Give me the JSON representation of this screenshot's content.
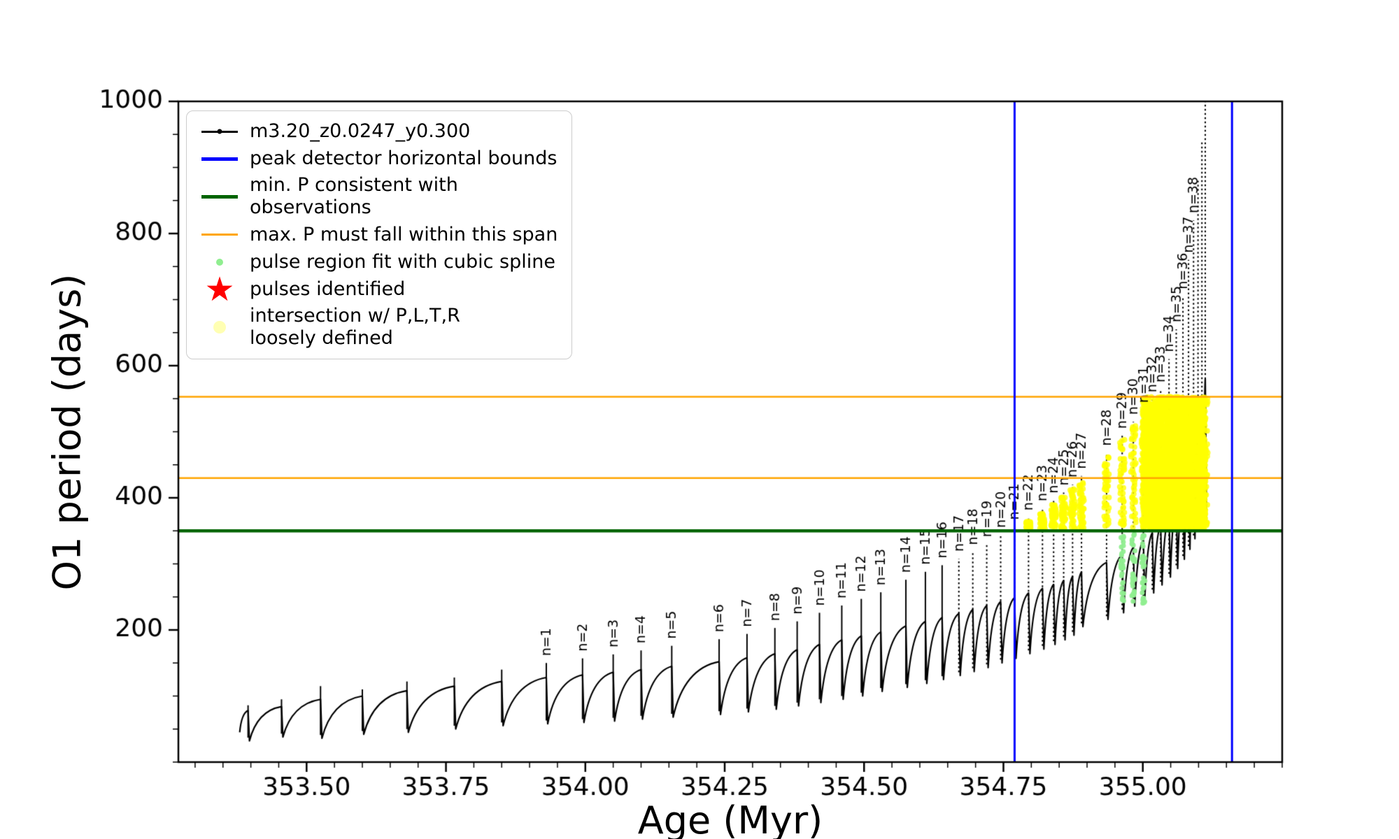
{
  "figure": {
    "background": "#ffffff"
  },
  "axes": {
    "xlabel": "Age (Myr)",
    "ylabel": "O1 period (days)",
    "xlim": [
      353.27,
      355.25
    ],
    "ylim": [
      0,
      1000
    ],
    "xticks": [
      353.5,
      353.75,
      354.0,
      354.25,
      354.5,
      354.75,
      355.0
    ],
    "xtick_labels": [
      "353.50",
      "353.75",
      "354.00",
      "354.25",
      "354.50",
      "354.75",
      "355.00"
    ],
    "yticks": [
      200,
      400,
      600,
      800,
      1000
    ],
    "ytick_labels": [
      "200",
      "400",
      "600",
      "800",
      "1000"
    ],
    "x_minor_step": 0.05,
    "y_minor_step": 50
  },
  "chart_data": {
    "type": "line",
    "series_name": "m3.20_z0.0247_y0.300",
    "title": "",
    "xlabel": "Age (Myr)",
    "ylabel": "O1 period (days)",
    "start": {
      "x": 353.38,
      "y": 45
    },
    "pulses": [
      {
        "x": 353.395,
        "t": 40,
        "a": 78,
        "s": 86,
        "l": ""
      },
      {
        "x": 353.455,
        "t": 32,
        "a": 84,
        "s": 95,
        "l": ""
      },
      {
        "x": 353.525,
        "t": 38,
        "a": 95,
        "s": 115,
        "l": ""
      },
      {
        "x": 353.6,
        "t": 36,
        "a": 100,
        "s": 110,
        "l": ""
      },
      {
        "x": 353.68,
        "t": 42,
        "a": 108,
        "s": 122,
        "l": ""
      },
      {
        "x": 353.765,
        "t": 45,
        "a": 115,
        "s": 128,
        "l": ""
      },
      {
        "x": 353.85,
        "t": 50,
        "a": 122,
        "s": 140,
        "l": ""
      },
      {
        "x": 353.93,
        "t": 55,
        "a": 128,
        "s": 150,
        "l": "n=1"
      },
      {
        "x": 353.995,
        "t": 58,
        "a": 132,
        "s": 157,
        "l": "n=2"
      },
      {
        "x": 354.05,
        "t": 60,
        "a": 136,
        "s": 163,
        "l": "n=3"
      },
      {
        "x": 354.1,
        "t": 62,
        "a": 140,
        "s": 169,
        "l": "n=4"
      },
      {
        "x": 354.155,
        "t": 65,
        "a": 145,
        "s": 176,
        "l": "n=5"
      },
      {
        "x": 354.24,
        "t": 68,
        "a": 152,
        "s": 186,
        "l": "n=6"
      },
      {
        "x": 354.29,
        "t": 72,
        "a": 158,
        "s": 194,
        "l": "n=7"
      },
      {
        "x": 354.34,
        "t": 76,
        "a": 164,
        "s": 203,
        "l": "n=8"
      },
      {
        "x": 354.38,
        "t": 80,
        "a": 170,
        "s": 213,
        "l": "n=9"
      },
      {
        "x": 354.42,
        "t": 85,
        "a": 178,
        "s": 226,
        "l": "n=10"
      },
      {
        "x": 354.46,
        "t": 90,
        "a": 185,
        "s": 237,
        "l": "n=11"
      },
      {
        "x": 354.495,
        "t": 95,
        "a": 191,
        "s": 247,
        "l": "n=12"
      },
      {
        "x": 354.53,
        "t": 100,
        "a": 197,
        "s": 257,
        "l": "n=13"
      },
      {
        "x": 354.575,
        "t": 107,
        "a": 206,
        "s": 276,
        "l": "n=14"
      },
      {
        "x": 354.61,
        "t": 113,
        "a": 213,
        "s": 288,
        "l": "n=15"
      },
      {
        "x": 354.64,
        "t": 119,
        "a": 219,
        "s": 298,
        "l": "n=16"
      },
      {
        "x": 354.67,
        "t": 125,
        "a": 225,
        "s": 308,
        "l": "n=17"
      },
      {
        "x": 354.695,
        "t": 131,
        "a": 231,
        "s": 318,
        "l": "n=18"
      },
      {
        "x": 354.72,
        "t": 137,
        "a": 237,
        "s": 330,
        "l": "n=19"
      },
      {
        "x": 354.745,
        "t": 143,
        "a": 243,
        "s": 344,
        "l": "n=20"
      },
      {
        "x": 354.77,
        "t": 150,
        "a": 249,
        "s": 356,
        "l": "n=21"
      },
      {
        "x": 354.795,
        "t": 157,
        "a": 256,
        "s": 370,
        "l": "n=22"
      },
      {
        "x": 354.82,
        "t": 164,
        "a": 263,
        "s": 384,
        "l": "n=23"
      },
      {
        "x": 354.84,
        "t": 171,
        "a": 269,
        "s": 396,
        "l": "n=24"
      },
      {
        "x": 354.858,
        "t": 178,
        "a": 275,
        "s": 408,
        "l": "n=25"
      },
      {
        "x": 354.874,
        "t": 185,
        "a": 281,
        "s": 420,
        "l": "n=26"
      },
      {
        "x": 354.89,
        "t": 192,
        "a": 288,
        "s": 433,
        "l": "n=27"
      },
      {
        "x": 354.935,
        "t": 205,
        "a": 302,
        "s": 468,
        "l": "n=28"
      },
      {
        "x": 354.963,
        "t": 216,
        "a": 314,
        "s": 494,
        "l": "n=29"
      },
      {
        "x": 354.983,
        "t": 226,
        "a": 325,
        "s": 515,
        "l": "n=30"
      },
      {
        "x": 355.001,
        "t": 236,
        "a": 336,
        "s": 533,
        "l": "n=31"
      },
      {
        "x": 355.017,
        "t": 246,
        "a": 347,
        "s": 549,
        "l": "n=32"
      },
      {
        "x": 355.032,
        "t": 256,
        "a": 358,
        "s": 564,
        "l": "n=33"
      },
      {
        "x": 355.047,
        "t": 268,
        "a": 372,
        "s": 610,
        "l": "n=34"
      },
      {
        "x": 355.06,
        "t": 280,
        "a": 388,
        "s": 655,
        "l": "n=35"
      },
      {
        "x": 355.072,
        "t": 293,
        "a": 406,
        "s": 705,
        "l": "n=36"
      },
      {
        "x": 355.082,
        "t": 307,
        "a": 428,
        "s": 760,
        "l": "n=37"
      },
      {
        "x": 355.091,
        "t": 322,
        "a": 455,
        "s": 820,
        "l": "n=38"
      },
      {
        "x": 355.099,
        "t": 338,
        "a": 490,
        "s": 880,
        "l": ""
      },
      {
        "x": 355.106,
        "t": 352,
        "a": 530,
        "s": 940,
        "l": ""
      },
      {
        "x": 355.112,
        "t": 365,
        "a": 580,
        "s": 1000,
        "l": ""
      }
    ],
    "vlines": {
      "color": "#0000ff",
      "width": 3,
      "x": [
        354.77,
        355.16
      ]
    },
    "hlines": [
      {
        "y": 350,
        "color": "#006400",
        "width": 4.5
      },
      {
        "y": 553,
        "color": "#ffa500",
        "width": 2.5
      },
      {
        "y": 430,
        "color": "#ffa500",
        "width": 2.5
      }
    ],
    "yellow_region": {
      "x_min": 354.77,
      "x_max": 355.112,
      "y_min": 352,
      "y_max": 553,
      "color": "#ffff00"
    },
    "green_points": {
      "labels": [
        "n=29",
        "n=30",
        "n=31"
      ],
      "y_min": 240,
      "y_max": 348,
      "color": "#90ee90"
    },
    "line_color": "#000000"
  },
  "legend": {
    "items": [
      {
        "label": "m3.20_z0.0247_y0.300",
        "swatch": "line-dot",
        "color": "#000000"
      },
      {
        "label": "peak detector horizontal bounds",
        "swatch": "line-thick",
        "color": "#0000ff"
      },
      {
        "label": "min. P consistent with observations",
        "swatch": "line-thick",
        "color": "#006400"
      },
      {
        "label": "max. P must fall within this span",
        "swatch": "line",
        "color": "#ffa500"
      },
      {
        "label": "pulse region fit with cubic spline",
        "swatch": "dot-small",
        "color": "#90ee90"
      },
      {
        "label": "pulses identified",
        "swatch": "star",
        "color": "#ff0000",
        "glyph": "★"
      },
      {
        "label": "intersection w/ P,L,T,R\nloosely defined",
        "swatch": "dot-large",
        "color": "#ffffb3"
      }
    ]
  }
}
